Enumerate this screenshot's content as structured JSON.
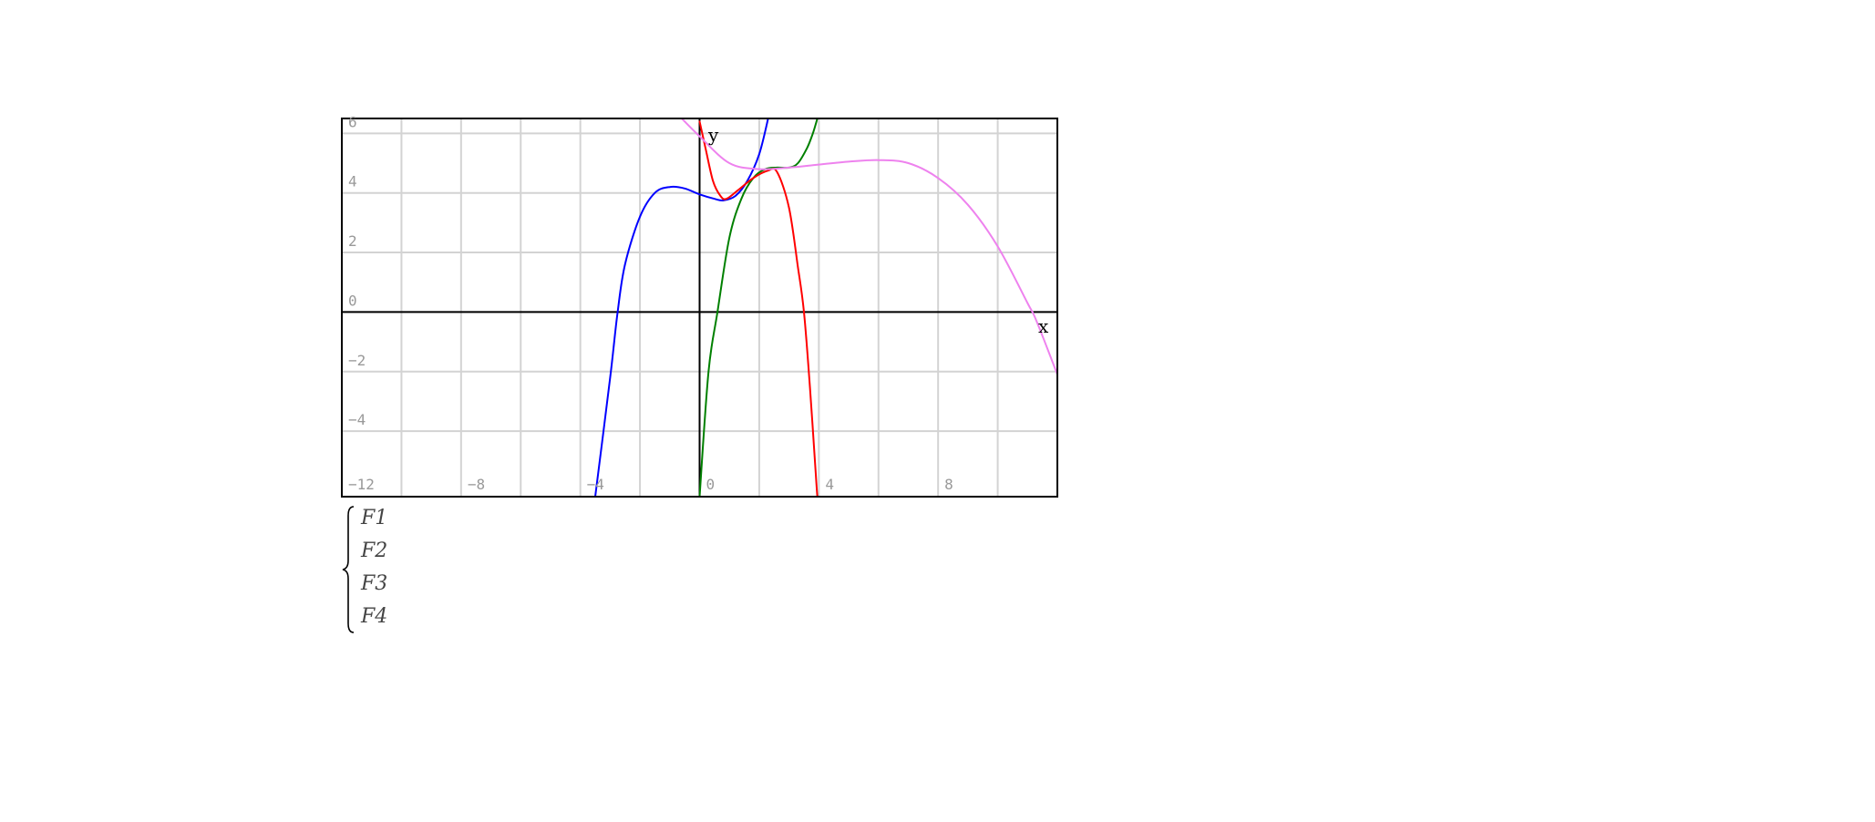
{
  "chart_data": {
    "type": "line",
    "xlabel": "x",
    "ylabel": "y",
    "xlim": [
      -12,
      12
    ],
    "ylim": [
      -6.2,
      6.5
    ],
    "grid": true,
    "x_ticks": [
      -12,
      -8,
      -4,
      0,
      4,
      8
    ],
    "x_tick_labels": [
      "−12",
      "−8",
      "−4",
      "0",
      "4",
      "8"
    ],
    "y_ticks": [
      6,
      4,
      2,
      0,
      -2,
      -4
    ],
    "y_tick_labels": [
      "6",
      "4",
      "2",
      "0",
      "−2",
      "−4"
    ],
    "series": [
      {
        "name": "F1",
        "color": "#0000ff",
        "points": [
          [
            -3.5,
            -6.2
          ],
          [
            -3.0,
            -2.2
          ],
          [
            -2.75,
            0
          ],
          [
            -2.5,
            1.6
          ],
          [
            -2.0,
            3.2
          ],
          [
            -1.5,
            4.0
          ],
          [
            -1.0,
            4.2
          ],
          [
            -0.5,
            4.15
          ],
          [
            0,
            3.95
          ],
          [
            0.5,
            3.8
          ],
          [
            0.8,
            3.75
          ],
          [
            1.2,
            3.9
          ],
          [
            1.6,
            4.4
          ],
          [
            2.0,
            5.3
          ],
          [
            2.3,
            6.5
          ]
        ]
      },
      {
        "name": "F2",
        "color": "#008000",
        "points": [
          [
            0,
            -6.2
          ],
          [
            0.3,
            -2.0
          ],
          [
            0.6,
            0
          ],
          [
            1.0,
            2.5
          ],
          [
            1.4,
            3.8
          ],
          [
            1.8,
            4.5
          ],
          [
            2.2,
            4.8
          ],
          [
            2.6,
            4.85
          ],
          [
            3.0,
            4.85
          ],
          [
            3.3,
            5.0
          ],
          [
            3.6,
            5.5
          ],
          [
            3.8,
            6.0
          ],
          [
            3.95,
            6.5
          ]
        ]
      },
      {
        "name": "F3",
        "color": "#ff0000",
        "points": [
          [
            0,
            6.4
          ],
          [
            0.2,
            5.5
          ],
          [
            0.45,
            4.4
          ],
          [
            0.7,
            3.9
          ],
          [
            0.9,
            3.8
          ],
          [
            1.3,
            4.1
          ],
          [
            1.8,
            4.5
          ],
          [
            2.3,
            4.75
          ],
          [
            2.6,
            4.7
          ],
          [
            3.0,
            3.5
          ],
          [
            3.3,
            1.5
          ],
          [
            3.5,
            0
          ],
          [
            3.7,
            -2.5
          ],
          [
            3.9,
            -5.5
          ],
          [
            3.95,
            -6.2
          ]
        ]
      },
      {
        "name": "F4",
        "color": "#ee82ee",
        "points": [
          [
            -0.6,
            6.5
          ],
          [
            0,
            5.9
          ],
          [
            1.0,
            5.0
          ],
          [
            2.0,
            4.8
          ],
          [
            3.0,
            4.85
          ],
          [
            4.0,
            4.95
          ],
          [
            5.0,
            5.05
          ],
          [
            6.0,
            5.1
          ],
          [
            7.0,
            5.0
          ],
          [
            8.0,
            4.5
          ],
          [
            9.0,
            3.6
          ],
          [
            10.0,
            2.2
          ],
          [
            11.0,
            0.3
          ],
          [
            11.3,
            -0.3
          ],
          [
            12.0,
            -2.1
          ]
        ]
      }
    ],
    "legend": {
      "placement": "below",
      "entries": [
        "F1",
        "F2",
        "F3",
        "F4"
      ]
    }
  }
}
